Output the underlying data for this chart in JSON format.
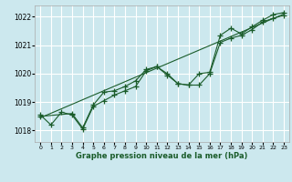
{
  "xlabel": "Graphe pression niveau de la mer (hPa)",
  "ylabel": "",
  "bg_color": "#cce8ee",
  "grid_color": "#ffffff",
  "line_color": "#1a5c2a",
  "xlim": [
    -0.5,
    23.5
  ],
  "ylim": [
    1017.6,
    1022.4
  ],
  "yticks": [
    1018,
    1019,
    1020,
    1021,
    1022
  ],
  "xticks": [
    0,
    1,
    2,
    3,
    4,
    5,
    6,
    7,
    8,
    9,
    10,
    11,
    12,
    13,
    14,
    15,
    16,
    17,
    18,
    19,
    20,
    21,
    22,
    23
  ],
  "series1_x": [
    0,
    1,
    2,
    3,
    4,
    5,
    6,
    7,
    8,
    9,
    10,
    11,
    12,
    13,
    14,
    15,
    16,
    17,
    18,
    19,
    20,
    21,
    22,
    23
  ],
  "series1_y": [
    1018.55,
    1018.2,
    1018.65,
    1018.55,
    1018.05,
    1018.85,
    1019.05,
    1019.25,
    1019.4,
    1019.55,
    1020.1,
    1020.25,
    1019.95,
    1019.65,
    1019.6,
    1019.6,
    1020.0,
    1021.1,
    1021.25,
    1021.35,
    1021.55,
    1021.82,
    1021.95,
    1022.05
  ],
  "series2_x": [
    0,
    3,
    4,
    5,
    6,
    7,
    8,
    9,
    10,
    11,
    12,
    13,
    14,
    15,
    16,
    17,
    18,
    19,
    20,
    21,
    22,
    23
  ],
  "series2_y": [
    1018.5,
    1018.6,
    1018.1,
    1018.9,
    1019.35,
    1019.4,
    1019.55,
    1019.75,
    1020.15,
    1020.25,
    1020.0,
    1019.65,
    1019.6,
    1020.0,
    1020.05,
    1021.35,
    1021.6,
    1021.4,
    1021.65,
    1021.88,
    1022.08,
    1022.15
  ],
  "trend_x": [
    0,
    23
  ],
  "trend_y": [
    1018.45,
    1022.1
  ]
}
